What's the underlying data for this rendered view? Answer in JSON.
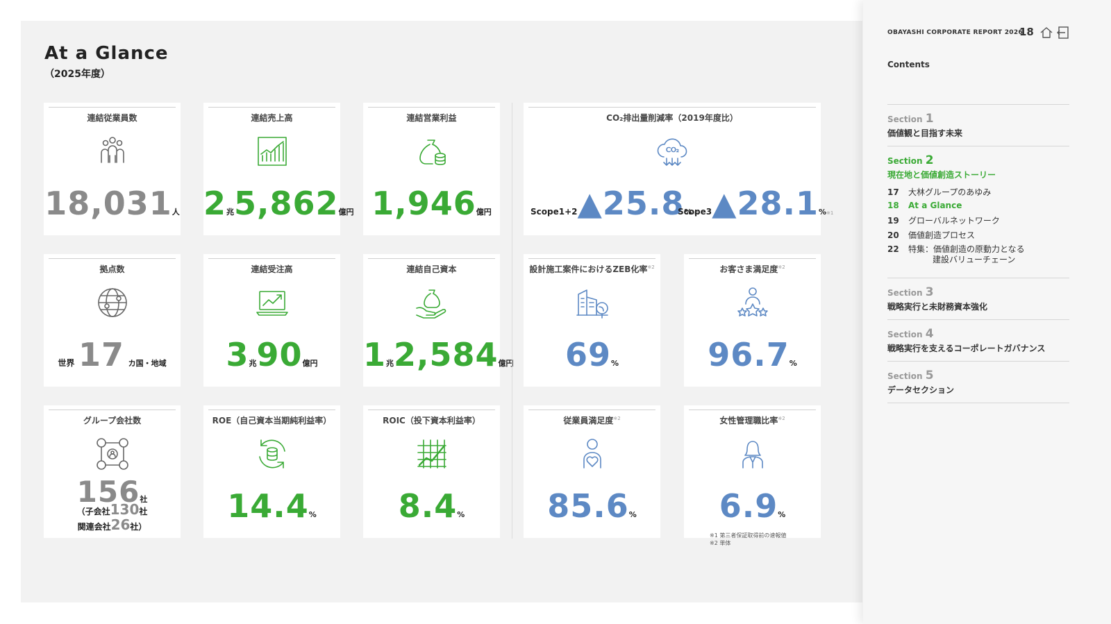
{
  "page": {
    "title": "At a Glance",
    "subtitle": "（2025年度）"
  },
  "cards": {
    "employees": {
      "title": "連結従業員数",
      "value": "18,031",
      "unit": "人"
    },
    "sales": {
      "title": "連結売上高",
      "value_major": "2",
      "unit_major": "兆",
      "value_minor": "5,862",
      "unit": "億円"
    },
    "op_income": {
      "title": "連結営業利益",
      "value": "1,946",
      "unit": "億円"
    },
    "co2": {
      "title": "CO₂排出量削減率（2019年度比）",
      "scope12_label": "Scope1+2",
      "scope12_value": "▲25.8",
      "scope3_label": "Scope3",
      "scope3_value": "▲28.1",
      "unit": "%",
      "note": "※1"
    },
    "bases": {
      "title": "拠点数",
      "prefix": "世界",
      "value": "17",
      "unit": "カ国・地域"
    },
    "orders": {
      "title": "連結受注高",
      "value_major": "3",
      "unit_major": "兆",
      "value_minor": "90",
      "unit": "億円"
    },
    "equity": {
      "title": "連結自己資本",
      "value_major": "1",
      "unit_major": "兆",
      "value_minor": "2,584",
      "unit": "億円"
    },
    "zeb": {
      "title": "設計施工案件におけるZEB化率",
      "note": "※2",
      "value": "69",
      "unit": "%"
    },
    "customer": {
      "title": "お客さま満足度",
      "note": "※2",
      "value": "96.7",
      "unit": "%"
    },
    "group": {
      "title": "グループ会社数",
      "value": "156",
      "unit": "社",
      "sub1_label": "（子会社",
      "sub1_value": "130",
      "sub1_unit": "社",
      "sub2_label": "関連会社",
      "sub2_value": "26",
      "sub2_unit": "社）"
    },
    "roe": {
      "title": "ROE（自己資本当期純利益率）",
      "value": "14.4",
      "unit": "%"
    },
    "roic": {
      "title": "ROIC（投下資本利益率）",
      "value": "8.4",
      "unit": "%"
    },
    "employee_sat": {
      "title": "従業員満足度",
      "note": "※2",
      "value": "85.6",
      "unit": "%"
    },
    "women": {
      "title": "女性管理職比率",
      "note": "※2",
      "value": "6.9",
      "unit": "%"
    }
  },
  "footnotes": {
    "n1": "※1 第三者保証取得前の速報値",
    "n2": "※2 単体"
  },
  "sidebar": {
    "report_label": "OBAYASHI CORPORATE REPORT 2026",
    "page_number": "18",
    "contents_label": "Contents",
    "section_word": "Section",
    "sections": [
      {
        "num": "1",
        "title": "価値観と目指す未来"
      },
      {
        "num": "2",
        "title": "現在地と価値創造ストーリー"
      },
      {
        "num": "3",
        "title": "戦略実行と未財務資本強化"
      },
      {
        "num": "4",
        "title": "戦略実行を支えるコーポレートガバナンス"
      },
      {
        "num": "5",
        "title": "データセクション"
      }
    ],
    "toc": [
      {
        "page": "17",
        "label": "大林グループのあゆみ"
      },
      {
        "page": "18",
        "label": "At a Glance"
      },
      {
        "page": "19",
        "label": "グローバルネットワーク"
      },
      {
        "page": "20",
        "label": "価値創造プロセス"
      },
      {
        "page": "22",
        "label": "特集：価値創造の原動力となる",
        "label2": "建設バリューチェーン"
      }
    ]
  },
  "colors": {
    "green": "#3aaa35",
    "blue": "#5d89c4",
    "gray": "#8a8a8a"
  }
}
